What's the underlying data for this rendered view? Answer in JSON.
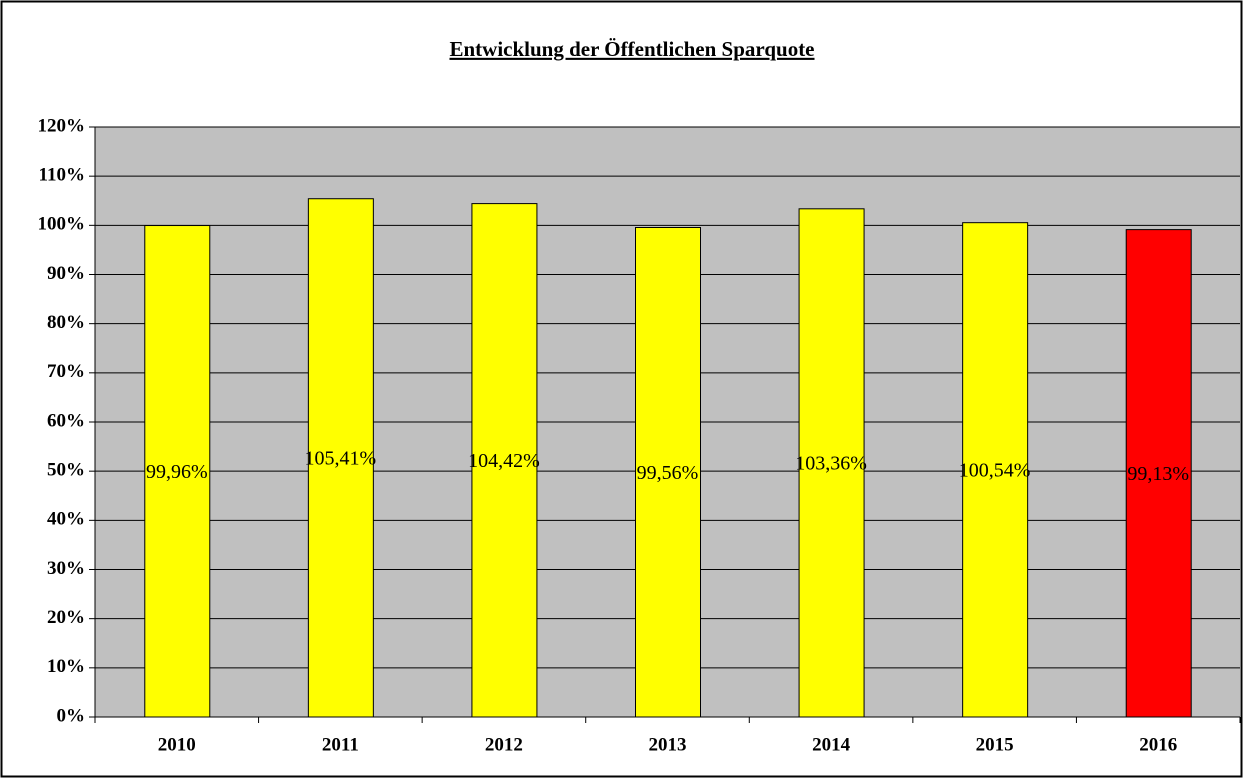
{
  "chart_data": {
    "type": "bar",
    "title": "Entwicklung der Öffentlichen Sparquote",
    "categories": [
      "2010",
      "2011",
      "2012",
      "2013",
      "2014",
      "2015",
      "2016"
    ],
    "values": [
      99.96,
      105.41,
      104.42,
      99.56,
      103.36,
      100.54,
      99.13
    ],
    "value_labels": [
      "99,96%",
      "105,41%",
      "104,42%",
      "99,56%",
      "103,36%",
      "100,54%",
      "99,13%"
    ],
    "colors": [
      "#ffff00",
      "#ffff00",
      "#ffff00",
      "#ffff00",
      "#ffff00",
      "#ffff00",
      "#ff0000"
    ],
    "ylim": [
      0,
      120
    ],
    "yticks": [
      {
        "value": 0,
        "label": "0%"
      },
      {
        "value": 10,
        "label": "10%"
      },
      {
        "value": 20,
        "label": "20%"
      },
      {
        "value": 30,
        "label": "30%"
      },
      {
        "value": 40,
        "label": "40%"
      },
      {
        "value": 50,
        "label": "50%"
      },
      {
        "value": 60,
        "label": "60%"
      },
      {
        "value": 70,
        "label": "70%"
      },
      {
        "value": 80,
        "label": "80%"
      },
      {
        "value": 90,
        "label": "90%"
      },
      {
        "value": 100,
        "label": "100%"
      },
      {
        "value": 110,
        "label": "110%"
      },
      {
        "value": 120,
        "label": "120%"
      }
    ],
    "grid": true,
    "plot_background": "#c0c0c0"
  }
}
